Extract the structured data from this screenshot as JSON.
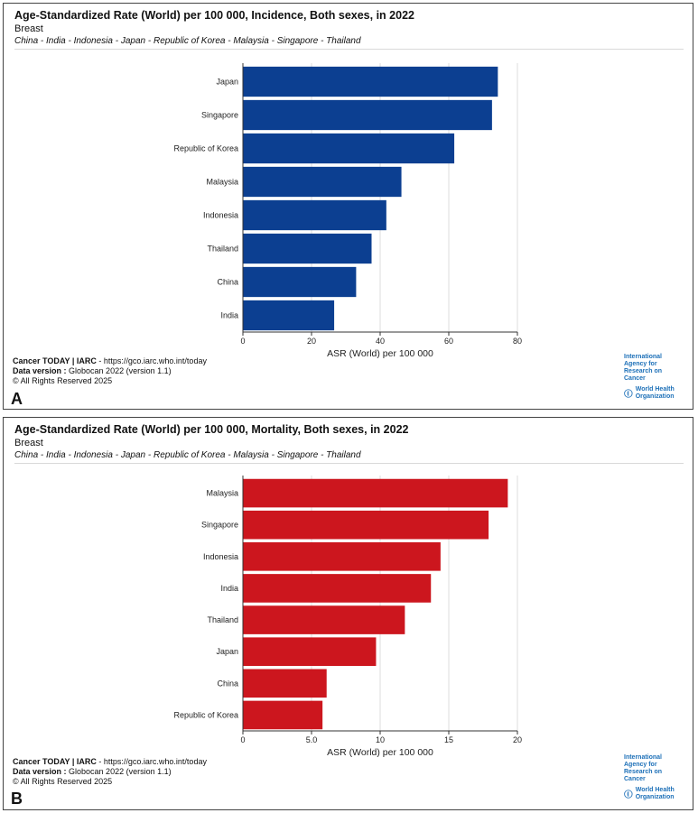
{
  "panels": [
    {
      "label": "A",
      "title": "Age-Standardized Rate (World) per 100 000, Incidence, Both sexes, in 2022",
      "subtitle": "Breast",
      "countries": "China - India - Indonesia - Japan - Republic of Korea - Malaysia - Singapore - Thailand",
      "footer": {
        "source_bold": "Cancer TODAY | IARC",
        "source_url": " - https://gco.iarc.who.int/today",
        "version_bold": "Data version :",
        "version_text": " Globocan 2022 (version 1.1)",
        "rights": "© All Rights Reserved 2025"
      },
      "logos": {
        "iarc": "International Agency for Research on Cancer",
        "who": "World Health Organization"
      }
    },
    {
      "label": "B",
      "title": "Age-Standardized Rate (World) per 100 000, Mortality, Both sexes, in 2022",
      "subtitle": "Breast",
      "countries": "China - India - Indonesia - Japan - Republic of Korea - Malaysia - Singapore - Thailand",
      "footer": {
        "source_bold": "Cancer TODAY | IARC",
        "source_url": " - https://gco.iarc.who.int/today",
        "version_bold": "Data version :",
        "version_text": " Globocan 2022 (version 1.1)",
        "rights": "© All Rights Reserved 2025"
      },
      "logos": {
        "iarc": "International Agency for Research on Cancer",
        "who": "World Health Organization"
      }
    }
  ],
  "chart_data": [
    {
      "type": "bar",
      "orientation": "horizontal",
      "title": "Age-Standardized Rate (World) per 100 000, Incidence, Both sexes, in 2022",
      "categories": [
        "Japan",
        "Singapore",
        "Republic of Korea",
        "Malaysia",
        "Indonesia",
        "Thailand",
        "China",
        "India"
      ],
      "values": [
        74.3,
        72.6,
        61.6,
        46.2,
        41.8,
        37.5,
        33.0,
        26.6
      ],
      "xlabel": "ASR (World) per 100 000",
      "ylabel": "",
      "xlim": [
        0,
        80
      ],
      "xticks": [
        0,
        20,
        40,
        60,
        80
      ],
      "xtick_labels": [
        "0",
        "20",
        "40",
        "60",
        "80"
      ],
      "color": "#0c3f91",
      "grid": true
    },
    {
      "type": "bar",
      "orientation": "horizontal",
      "title": "Age-Standardized Rate (World) per 100 000, Mortality, Both sexes, in 2022",
      "categories": [
        "Malaysia",
        "Singapore",
        "Indonesia",
        "India",
        "Thailand",
        "Japan",
        "China",
        "Republic of Korea"
      ],
      "values": [
        19.3,
        17.9,
        14.4,
        13.7,
        11.8,
        9.7,
        6.1,
        5.8
      ],
      "xlabel": "ASR (World) per 100 000",
      "ylabel": "",
      "xlim": [
        0,
        20
      ],
      "xticks": [
        0,
        5,
        10,
        15,
        20
      ],
      "xtick_labels": [
        "0",
        "5.0",
        "10",
        "15",
        "20"
      ],
      "color": "#cc161e",
      "grid": true
    }
  ]
}
